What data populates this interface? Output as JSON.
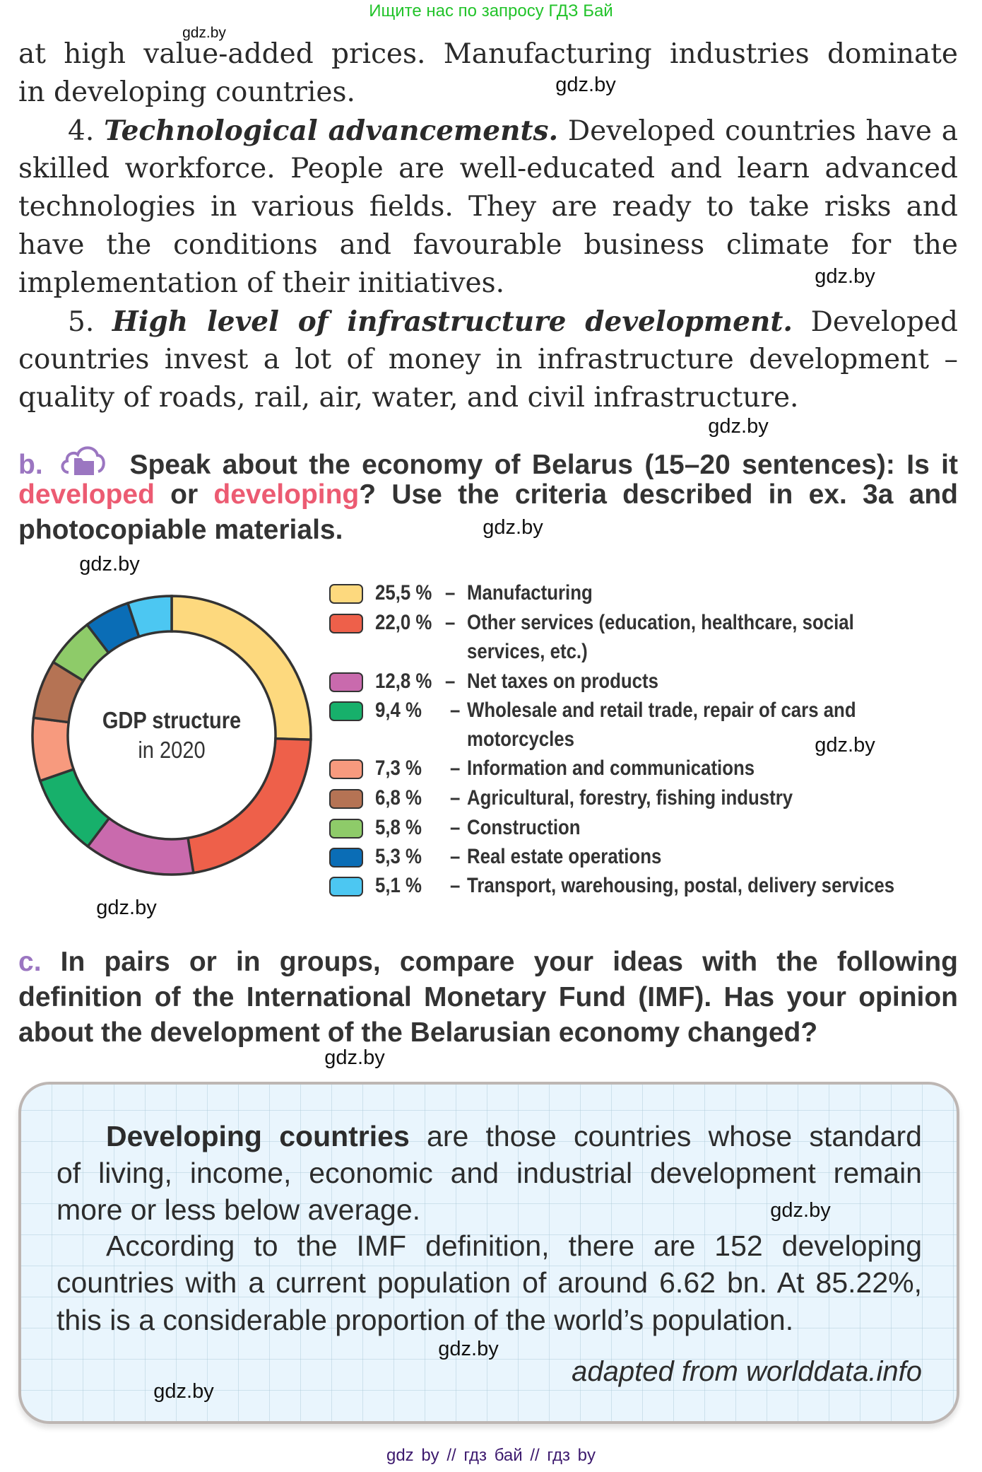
{
  "banner": "Ищите нас по запросу ГДЗ Бай",
  "body_lines": [
    {
      "text": "at high value-added prices. Manufacturing industries dominate"
    },
    {
      "text": "in developing countries."
    },
    {
      "num": "4. ",
      "heading": "Technological advancements.",
      "text": " Developed countries have a"
    },
    {
      "text": "skilled workforce. People are well-educated and learn advanced"
    },
    {
      "text": "technologies in various fields. They are ready to take risks and"
    },
    {
      "text": "have the conditions and favourable business climate for the"
    },
    {
      "text": "implementation of their initiatives."
    },
    {
      "num": "5. ",
      "heading": "High level of infrastructure development.",
      "text": " Developed"
    },
    {
      "text": "countries invest a lot of money in infrastructure development –"
    },
    {
      "text": "quality of roads, rail, air, water, and civil infrastructure."
    }
  ],
  "task_b": {
    "letter": "b.",
    "icon": "cloud-folder-icon",
    "line1": "Speak about the economy of Belarus (15–20 sentences): Is it",
    "word_developed": "developed",
    "or": " or ",
    "word_developing": "developing",
    "line2_rest": "? Use the criteria described in ex. 3a and",
    "line3": "photocopiable materials."
  },
  "chart_data": {
    "type": "pie",
    "variant": "donut",
    "title": "GDP structure",
    "subtitle": "in 2020",
    "slices": [
      {
        "value": 25.5,
        "pct": "25,5 %",
        "dash": "–",
        "label": "Manufacturing",
        "color": "#fdd97e"
      },
      {
        "value": 22.0,
        "pct": "22,0 %",
        "dash": "–",
        "label": "Other services (education, healthcare, social",
        "label2": "services, etc.)",
        "color": "#ee604a"
      },
      {
        "value": 12.8,
        "pct": "12,8 %",
        "dash": "–",
        "label": "Net taxes on products",
        "color": "#c96aad"
      },
      {
        "value": 9.4,
        "pct": "9,4 %",
        "dash": "–",
        "label": "Wholesale and retail trade, repair of cars and",
        "label2": "motorcycles",
        "color": "#17b06b"
      },
      {
        "value": 7.3,
        "pct": "7,3 %",
        "dash": "–",
        "label": "Information and communications",
        "color": "#f79a7e"
      },
      {
        "value": 6.8,
        "pct": "6,8 %",
        "dash": "–",
        "label": "Agricultural, forestry, fishing industry",
        "color": "#b57354"
      },
      {
        "value": 5.8,
        "pct": "5,8 %",
        "dash": "–",
        "label": "Construction",
        "color": "#8ecb69"
      },
      {
        "value": 5.3,
        "pct": "5,3 %",
        "dash": "–",
        "label": "Real estate operations",
        "color": "#0a6db6"
      },
      {
        "value": 5.1,
        "pct": "5,1 %",
        "dash": "–",
        "label": "Transport, warehousing, postal, delivery services",
        "color": "#4cc7f2"
      }
    ],
    "legend_position": "right"
  },
  "task_c": {
    "letter": "c.",
    "line1": "In pairs or in groups, compare your ideas with the following",
    "line2": "definition of the International Monetary Fund (IMF). Has your opinion",
    "line3": "about the development of the Belarusian economy changed?"
  },
  "definition_box": {
    "term": "Developing countries",
    "line1_rest": " are those countries whose standard",
    "line2": "of living, income, economic and industrial development remain",
    "line3": "more or less below average.",
    "line4": "According to the IMF definition, there are 152 developing",
    "line5": "countries with a current population of around 6.62 bn. At 85.22%,",
    "line6": "this is a considerable proportion of the world’s population.",
    "source": "adapted from worlddata.info"
  },
  "watermarks": [
    "gdz.by",
    "gdz.by",
    "gdz.by",
    "gdz.by",
    "gdz.by",
    "gdz.by",
    "gdz.by",
    "gdz.by",
    "gdz.by",
    "gdz.by",
    "gdz.by",
    "gdz.by"
  ],
  "footer": "gdz by  //  гдз бай  //  гдз by"
}
